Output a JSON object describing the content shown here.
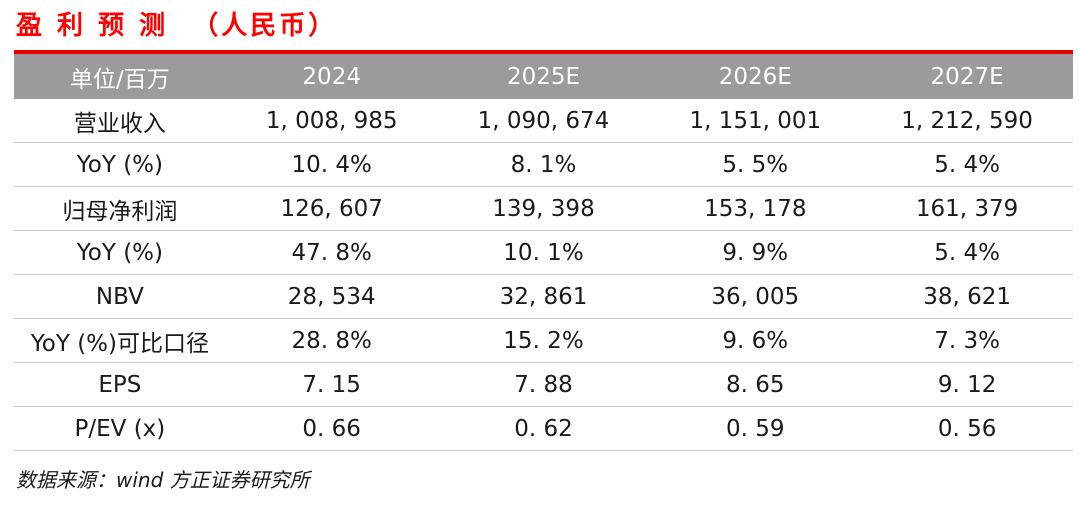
{
  "title": "盈 利 预 测  （人民币）",
  "colors": {
    "title_red": "#ff0000",
    "rule_red": "#e60000",
    "header_gray": "#9b9b9b",
    "separator_gray": "#c8c8c8",
    "header_text": "#ffffff",
    "body_text": "#1a1a1a"
  },
  "table": {
    "columns": [
      "单位/百万",
      "2024",
      "2025E",
      "2026E",
      "2027E"
    ],
    "rows": [
      {
        "label": "营业收入",
        "values": [
          "1, 008, 985",
          "1, 090, 674",
          "1, 151, 001",
          "1, 212, 590"
        ]
      },
      {
        "label": "YoY (%)",
        "values": [
          "10. 4%",
          "8. 1%",
          "5. 5%",
          "5. 4%"
        ]
      },
      {
        "label": "归母净利润",
        "values": [
          "126, 607",
          "139, 398",
          "153, 178",
          "161, 379"
        ]
      },
      {
        "label": "YoY (%)",
        "values": [
          "47. 8%",
          "10. 1%",
          "9. 9%",
          "5. 4%"
        ]
      },
      {
        "label": "NBV",
        "values": [
          "28, 534",
          "32, 861",
          "36, 005",
          "38, 621"
        ]
      },
      {
        "label": "YoY (%)可比口径",
        "values": [
          "28. 8%",
          "15. 2%",
          "9. 6%",
          "7. 3%"
        ]
      },
      {
        "label": "EPS",
        "values": [
          "7. 15",
          "7. 88",
          "8. 65",
          "9. 12"
        ]
      },
      {
        "label": "P/EV (x)",
        "values": [
          "0. 66",
          "0. 62",
          "0. 59",
          "0. 56"
        ]
      }
    ]
  },
  "footer": {
    "source": "数据来源：wind 方正证券研究所"
  },
  "chart_data": {
    "type": "table",
    "title": "盈利预测（人民币）",
    "unit_note": "单位/百万",
    "categories": [
      "2024",
      "2025E",
      "2026E",
      "2027E"
    ],
    "series": [
      {
        "name": "营业收入",
        "values": [
          1008985,
          1090674,
          1151001,
          1212590
        ]
      },
      {
        "name": "YoY (%)",
        "values": [
          "10.4%",
          "8.1%",
          "5.5%",
          "5.4%"
        ]
      },
      {
        "name": "归母净利润",
        "values": [
          126607,
          139398,
          153178,
          161379
        ]
      },
      {
        "name": "YoY (%)",
        "values": [
          "47.8%",
          "10.1%",
          "9.9%",
          "5.4%"
        ]
      },
      {
        "name": "NBV",
        "values": [
          28534,
          32861,
          36005,
          38621
        ]
      },
      {
        "name": "YoY (%)可比口径",
        "values": [
          "28.8%",
          "15.2%",
          "9.6%",
          "7.3%"
        ]
      },
      {
        "name": "EPS",
        "values": [
          7.15,
          7.88,
          8.65,
          9.12
        ]
      },
      {
        "name": "P/EV (x)",
        "values": [
          0.66,
          0.62,
          0.59,
          0.56
        ]
      }
    ],
    "source": "数据来源：wind 方正证券研究所"
  }
}
